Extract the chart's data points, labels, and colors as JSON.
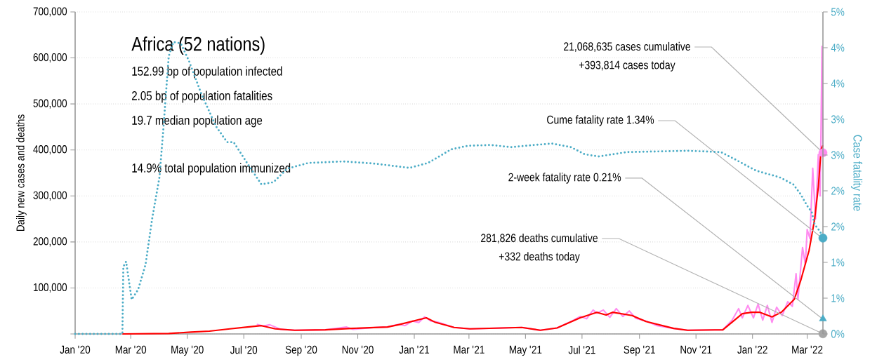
{
  "chart_data": {
    "type": "line",
    "title": "Africa (52 nations)",
    "ylabel": "Daily new cases and deaths",
    "y2label": "Case fatality rate",
    "annotations": [
      "152.99 bp of population infected",
      "2.05 bp of population fatalities",
      "19.7 median population age",
      "14.9% total population immunized",
      {
        "text": "21,068,635 cases cumulative",
        "x": "2022-03-18",
        "y": 393814
      },
      "+393,814 cases today",
      {
        "text": "Cume fatality rate 1.34%",
        "x": "2022-03-18",
        "y": 207000
      },
      {
        "text": "2-week fatality rate 0.21%",
        "x": "2022-03-18",
        "y": 32000
      },
      {
        "text": "281,826 deaths cumulative",
        "x": "2022-03-18",
        "y": 332
      },
      "+332 deaths today"
    ],
    "xlim": [
      "2020-01-01",
      "2022-03-18"
    ],
    "xticks": [
      {
        "value": "2020-01-01",
        "label": "Jan '20"
      },
      {
        "value": "2020-03-01",
        "label": "Mar '20"
      },
      {
        "value": "2020-05-01",
        "label": "May '20"
      },
      {
        "value": "2020-07-01",
        "label": "Jul '20"
      },
      {
        "value": "2020-09-01",
        "label": "Sep '20"
      },
      {
        "value": "2020-11-01",
        "label": "Nov '20"
      },
      {
        "value": "2021-01-01",
        "label": "Jan '21"
      },
      {
        "value": "2021-03-01",
        "label": "Mar '21"
      },
      {
        "value": "2021-05-01",
        "label": "May '21"
      },
      {
        "value": "2021-07-01",
        "label": "Jul '21"
      },
      {
        "value": "2021-09-01",
        "label": "Sep '21"
      },
      {
        "value": "2021-11-01",
        "label": "Nov '21"
      },
      {
        "value": "2022-01-01",
        "label": "Jan '22"
      },
      {
        "value": "2022-03-01",
        "label": "Mar '22"
      }
    ],
    "ylim": [
      0,
      700000
    ],
    "yticks": [
      {
        "value": 0,
        "label": null
      },
      {
        "value": 100000,
        "label": "100,000"
      },
      {
        "value": 200000,
        "label": "200,000"
      },
      {
        "value": 300000,
        "label": "300,000"
      },
      {
        "value": 400000,
        "label": "400,000"
      },
      {
        "value": 500000,
        "label": "500,000"
      },
      {
        "value": 600000,
        "label": "600,000"
      },
      {
        "value": 700000,
        "label": "700,000"
      }
    ],
    "y2lim": [
      0,
      4.5
    ],
    "y2ticks": [
      {
        "value": 0,
        "label": "0%"
      },
      {
        "value": 0.5,
        "label": "1%"
      },
      {
        "value": 1,
        "label": "1%"
      },
      {
        "value": 1.5,
        "label": "2%"
      },
      {
        "value": 2,
        "label": "2%"
      },
      {
        "value": 2.5,
        "label": "3%"
      },
      {
        "value": 3,
        "label": "3%"
      },
      {
        "value": 3.5,
        "label": "4%"
      },
      {
        "value": 4,
        "label": "4%"
      },
      {
        "value": 4.5,
        "label": "5%"
      }
    ],
    "grid": "y",
    "series": [
      {
        "color": "#ff8cf0",
        "line_style": "solid",
        "marker": "none",
        "x": [
          "2020-07-15",
          "2020-07-22",
          "2020-07-29",
          "2020-08-10",
          "2020-08-25",
          "2020-09-27",
          "2020-10-20",
          "2020-10-27",
          "2020-11-20",
          "2020-12-03",
          "2020-12-15",
          "2020-12-22",
          "2020-12-30",
          "2021-01-06",
          "2021-01-12",
          "2021-01-19",
          "2021-01-26",
          "2021-02-13",
          "2021-03-02",
          "2021-04-27",
          "2021-05-17",
          "2021-06-04",
          "2021-06-20",
          "2021-06-29",
          "2021-07-06",
          "2021-07-13",
          "2021-07-17",
          "2021-07-24",
          "2021-07-31",
          "2021-08-07",
          "2021-08-14",
          "2021-08-21",
          "2021-08-28",
          "2021-09-08",
          "2021-09-20",
          "2021-10-08",
          "2021-10-23",
          "2021-11-30",
          "2021-12-10",
          "2021-12-17",
          "2021-12-21",
          "2021-12-27",
          "2022-01-02",
          "2022-01-07",
          "2022-01-12",
          "2022-01-17",
          "2022-01-22",
          "2022-01-27",
          "2022-02-02",
          "2022-02-08",
          "2022-02-13",
          "2022-02-17",
          "2022-02-19",
          "2022-02-24",
          "2022-02-27",
          "2022-03-01",
          "2022-03-04",
          "2022-03-07",
          "2022-03-10",
          "2022-03-13",
          "2022-03-15",
          "2022-03-17",
          "2022-03-18"
        ],
        "values": [
          21000,
          17000,
          20000,
          10000,
          8000,
          9000,
          15000,
          10000,
          14000,
          15000,
          21000,
          18000,
          28000,
          25000,
          37000,
          28000,
          26000,
          14000,
          11000,
          14000,
          8000,
          13000,
          28000,
          38000,
          33000,
          52000,
          45000,
          52000,
          36000,
          55000,
          38000,
          50000,
          34000,
          28000,
          18000,
          12000,
          8000,
          9000,
          30000,
          55000,
          35000,
          62000,
          35000,
          65000,
          30000,
          62000,
          25000,
          58000,
          40000,
          70000,
          60000,
          131000,
          75000,
          188000,
          151000,
          227000,
          207000,
          360000,
          250000,
          390000,
          300000,
          625000,
          393814
        ]
      },
      {
        "color": "#ff0000",
        "line_style": "solid",
        "marker": "none",
        "x": [
          "2020-02-21",
          "2020-04-11",
          "2020-05-05",
          "2020-05-25",
          "2020-06-16",
          "2020-07-05",
          "2020-07-20",
          "2020-08-04",
          "2020-08-25",
          "2020-09-27",
          "2020-10-25",
          "2020-12-03",
          "2020-12-15",
          "2021-01-14",
          "2021-01-24",
          "2021-02-13",
          "2021-03-02",
          "2021-04-27",
          "2021-05-17",
          "2021-06-04",
          "2021-06-29",
          "2021-07-17",
          "2021-07-27",
          "2021-08-03",
          "2021-08-24",
          "2021-09-08",
          "2021-10-08",
          "2021-10-23",
          "2021-11-30",
          "2021-12-21",
          "2021-12-31",
          "2022-01-09",
          "2022-01-22",
          "2022-02-01",
          "2022-02-15",
          "2022-02-22",
          "2022-03-03",
          "2022-03-09",
          "2022-03-13",
          "2022-03-16",
          "2022-03-18"
        ],
        "values": [
          0,
          1000,
          4000,
          6000,
          11000,
          15000,
          18000,
          11000,
          8000,
          9000,
          12000,
          15000,
          20000,
          35000,
          25000,
          14000,
          11000,
          14000,
          8000,
          13000,
          35000,
          47000,
          41000,
          47000,
          40000,
          27000,
          12000,
          8000,
          9000,
          44000,
          47000,
          47000,
          37000,
          47000,
          75000,
          116000,
          181000,
          249000,
          319000,
          401000,
          410000
        ]
      },
      {
        "axis": "y2",
        "color": "#4bacc6",
        "line_style": "dotted",
        "marker": "none",
        "x": [
          "2020-01-01",
          "2020-02-21",
          "2020-02-22",
          "2020-02-25",
          "2020-03-02",
          "2020-03-09",
          "2020-03-17",
          "2020-03-24",
          "2020-04-01",
          "2020-04-05",
          "2020-04-11",
          "2020-04-16",
          "2020-04-24",
          "2020-05-03",
          "2020-05-16",
          "2020-06-01",
          "2020-06-13",
          "2020-06-20",
          "2020-07-05",
          "2020-07-20",
          "2020-08-02",
          "2020-08-17",
          "2020-09-09",
          "2020-10-17",
          "2020-11-19",
          "2020-12-27",
          "2021-01-16",
          "2021-02-10",
          "2021-02-28",
          "2021-03-25",
          "2021-04-15",
          "2021-05-10",
          "2021-05-30",
          "2021-06-19",
          "2021-07-04",
          "2021-07-19",
          "2021-08-18",
          "2021-10-23",
          "2021-11-28",
          "2021-12-13",
          "2022-01-05",
          "2022-01-30",
          "2022-02-14",
          "2022-02-22",
          "2022-03-01",
          "2022-03-06",
          "2022-03-09",
          "2022-03-15",
          "2022-03-18"
        ],
        "values": [
          0,
          0,
          0.94,
          1.01,
          0.48,
          0.62,
          0.97,
          1.6,
          2.19,
          2.83,
          3.88,
          4.08,
          4.06,
          3.81,
          3.36,
          2.9,
          2.68,
          2.68,
          2.38,
          2.09,
          2.12,
          2.31,
          2.39,
          2.41,
          2.38,
          2.32,
          2.39,
          2.58,
          2.63,
          2.64,
          2.61,
          2.64,
          2.66,
          2.61,
          2.51,
          2.48,
          2.54,
          2.56,
          2.54,
          2.44,
          2.28,
          2.19,
          2.09,
          1.95,
          1.79,
          1.7,
          1.53,
          1.43,
          1.34
        ]
      },
      {
        "type": "scatter",
        "color": "#ff8cf0",
        "marker": "circle",
        "x": [
          "2022-03-18"
        ],
        "values": [
          393814
        ]
      },
      {
        "type": "scatter",
        "color": "#a6a6a6",
        "marker": "circle",
        "x": [
          "2022-03-18"
        ],
        "values": [
          332
        ]
      },
      {
        "type": "scatter",
        "axis": "y2",
        "color": "#4bacc6",
        "marker": "circle",
        "x": [
          "2022-03-18"
        ],
        "values": [
          1.34
        ]
      },
      {
        "type": "scatter",
        "axis": "y2",
        "color": "#4bacc6",
        "marker": "triangle",
        "x": [
          "2022-03-18"
        ],
        "values": [
          0.21
        ]
      }
    ]
  }
}
